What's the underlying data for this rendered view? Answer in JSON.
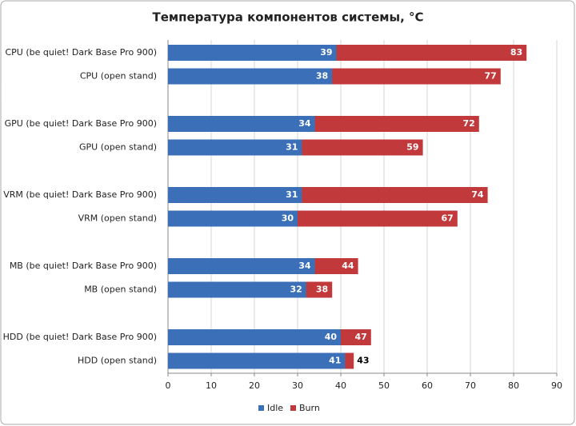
{
  "chart_data": {
    "type": "bar",
    "orientation": "horizontal",
    "layout": "overlapped",
    "title": "Температура компонентов системы, °C",
    "categories": [
      "CPU (be quiet! Dark Base Pro 900)",
      "CPU (open stand)",
      "GPU (be quiet! Dark Base Pro 900)",
      "GPU (open stand)",
      "VRM (be quiet! Dark Base Pro 900)",
      "VRM (open stand)",
      "MB (be quiet! Dark Base Pro 900)",
      "MB (open stand)",
      "HDD (be quiet! Dark Base Pro 900)",
      "HDD (open stand)"
    ],
    "series": [
      {
        "name": "Idle",
        "color": "#3b70b9",
        "values": [
          39,
          38,
          34,
          31,
          31,
          30,
          34,
          32,
          40,
          41
        ]
      },
      {
        "name": "Burn",
        "color": "#c2393c",
        "values": [
          83,
          77,
          72,
          59,
          74,
          67,
          44,
          38,
          47,
          43
        ]
      }
    ],
    "xlim": [
      0,
      90
    ],
    "xticks": [
      0,
      10,
      20,
      30,
      40,
      50,
      60,
      70,
      80,
      90
    ],
    "grid": true,
    "legend": "bottom"
  }
}
